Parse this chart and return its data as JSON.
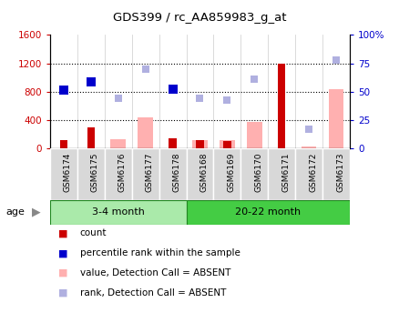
{
  "title": "GDS399 / rc_AA859983_g_at",
  "samples": [
    "GSM6174",
    "GSM6175",
    "GSM6176",
    "GSM6177",
    "GSM6178",
    "GSM6168",
    "GSM6169",
    "GSM6170",
    "GSM6171",
    "GSM6172",
    "GSM6173"
  ],
  "groups": [
    {
      "label": "3-4 month",
      "start": 0,
      "end": 5,
      "color": "#aaeaaa"
    },
    {
      "label": "20-22 month",
      "start": 5,
      "end": 11,
      "color": "#44cc44"
    }
  ],
  "count_values": [
    120,
    290,
    null,
    null,
    140,
    110,
    105,
    null,
    1200,
    null,
    null
  ],
  "rank_values": [
    820,
    940,
    null,
    null,
    840,
    null,
    null,
    null,
    null,
    null,
    null
  ],
  "value_absent": [
    null,
    null,
    130,
    430,
    null,
    120,
    110,
    370,
    null,
    30,
    830
  ],
  "rank_absent": [
    null,
    null,
    700,
    1120,
    null,
    700,
    680,
    980,
    null,
    270,
    1240
  ],
  "ylim_left": [
    0,
    1600
  ],
  "yticks_left": [
    0,
    400,
    800,
    1200,
    1600
  ],
  "yticks_right": [
    0,
    25,
    50,
    75,
    100
  ],
  "ytick_labels_right": [
    "0",
    "25",
    "50",
    "75",
    "100%"
  ],
  "hlines": [
    400,
    800,
    1200
  ],
  "bg_color": "#d8d8d8",
  "plot_bg": "#ffffff",
  "count_color": "#cc0000",
  "rank_color": "#0000cc",
  "value_absent_color": "#ffb0b0",
  "rank_absent_color": "#b0b0e0",
  "legend_items": [
    {
      "label": "count",
      "color": "#cc0000"
    },
    {
      "label": "percentile rank within the sample",
      "color": "#0000cc"
    },
    {
      "label": "value, Detection Call = ABSENT",
      "color": "#ffb0b0"
    },
    {
      "label": "rank, Detection Call = ABSENT",
      "color": "#b0b0e0"
    }
  ]
}
